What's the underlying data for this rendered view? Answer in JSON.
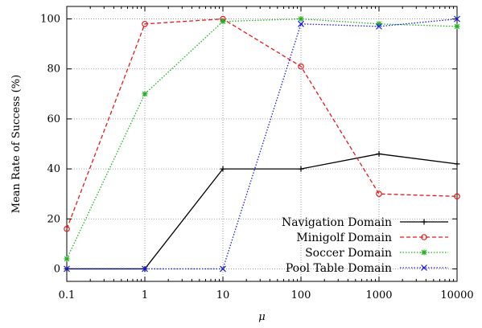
{
  "chart_data": {
    "type": "line",
    "title": "",
    "xlabel": "μ",
    "ylabel": "Mean Rate of Success (%)",
    "x_scale": "log",
    "x": [
      "0.1",
      "1",
      "10",
      "100",
      "1000",
      "10000"
    ],
    "x_values": [
      0.1,
      1,
      10,
      100,
      1000,
      10000
    ],
    "xlim": [
      0.1,
      10000
    ],
    "ylim": [
      -5,
      105
    ],
    "yticks": [
      0,
      20,
      40,
      60,
      80,
      100
    ],
    "grid": true,
    "legend_position": "bottom-right",
    "series": [
      {
        "name": "Navigation Domain",
        "color": "#000000",
        "dash": "solid",
        "marker": "plus",
        "values": [
          0,
          0,
          40,
          40,
          46,
          42
        ]
      },
      {
        "name": "Minigolf Domain",
        "color": "#e41a1c",
        "dash": "dashed",
        "marker": "circle",
        "values": [
          16,
          98,
          100,
          81,
          30,
          29
        ]
      },
      {
        "name": "Soccer Domain",
        "color": "#1fb01f",
        "dash": "dotted",
        "marker": "star",
        "values": [
          4,
          70,
          99,
          100,
          98,
          97
        ]
      },
      {
        "name": "Pool Table Domain",
        "color": "#1a1ae6",
        "dash": "dotted",
        "marker": "x",
        "values": [
          0,
          0,
          0,
          98,
          97,
          100
        ]
      }
    ]
  }
}
